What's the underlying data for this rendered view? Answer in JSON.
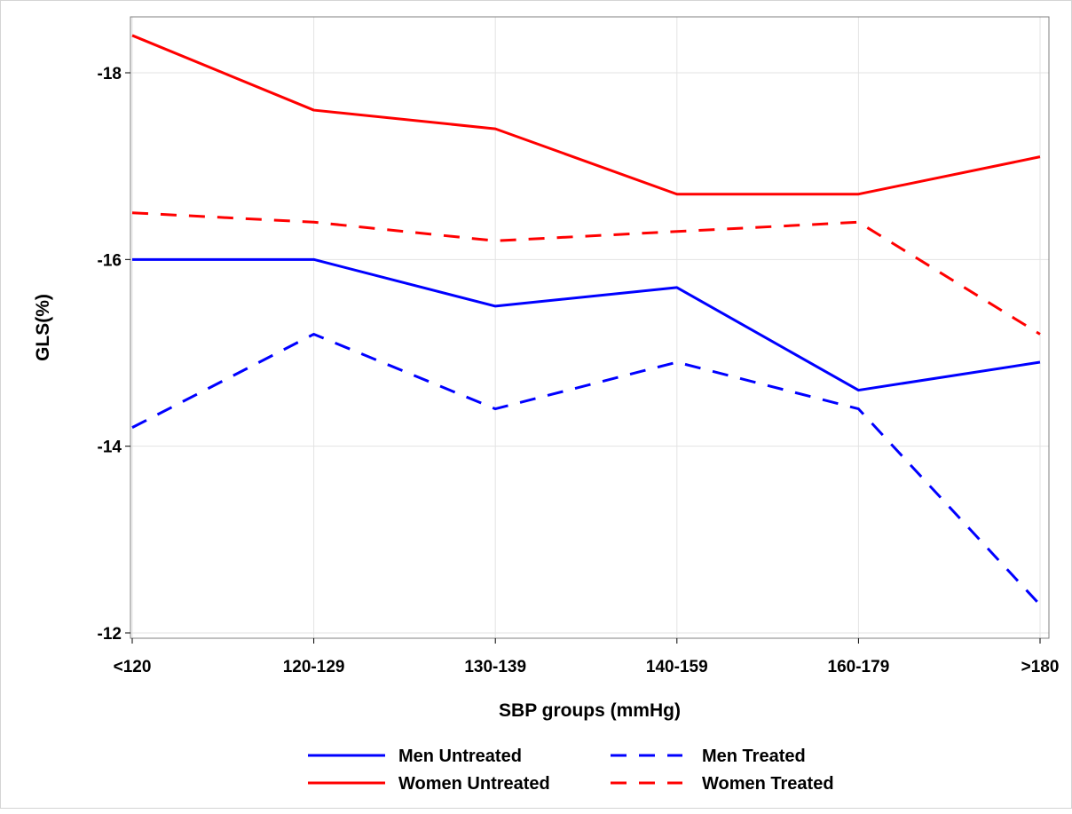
{
  "chart_data": {
    "type": "line",
    "title": "",
    "xlabel": "SBP groups (mmHg)",
    "ylabel": "GLS(%)",
    "categories": [
      "<120",
      "120-129",
      "130-139",
      "140-159",
      "160-179",
      ">180"
    ],
    "ylim": [
      -18.4,
      -11.9
    ],
    "y_axis_reversed": true,
    "yticks": [
      -18,
      -16,
      -14,
      -12
    ],
    "grid": true,
    "legend_position": "bottom",
    "series": [
      {
        "name": "Men Untreated",
        "color": "#0000ff",
        "dash": "solid",
        "values": [
          -16.0,
          -16.0,
          -15.5,
          -15.7,
          -14.6,
          -14.9
        ]
      },
      {
        "name": "Men Treated",
        "color": "#0000ff",
        "dash": "dashed",
        "values": [
          -14.2,
          -15.2,
          -14.4,
          -14.9,
          -14.4,
          -12.3
        ]
      },
      {
        "name": "Women Untreated",
        "color": "#ff0000",
        "dash": "solid",
        "values": [
          -18.4,
          -17.6,
          -17.4,
          -16.7,
          -16.7,
          -17.1
        ]
      },
      {
        "name": "Women Treated",
        "color": "#ff0000",
        "dash": "dashed",
        "values": [
          -16.5,
          -16.4,
          -16.2,
          -16.3,
          -16.4,
          -15.2
        ]
      }
    ]
  }
}
